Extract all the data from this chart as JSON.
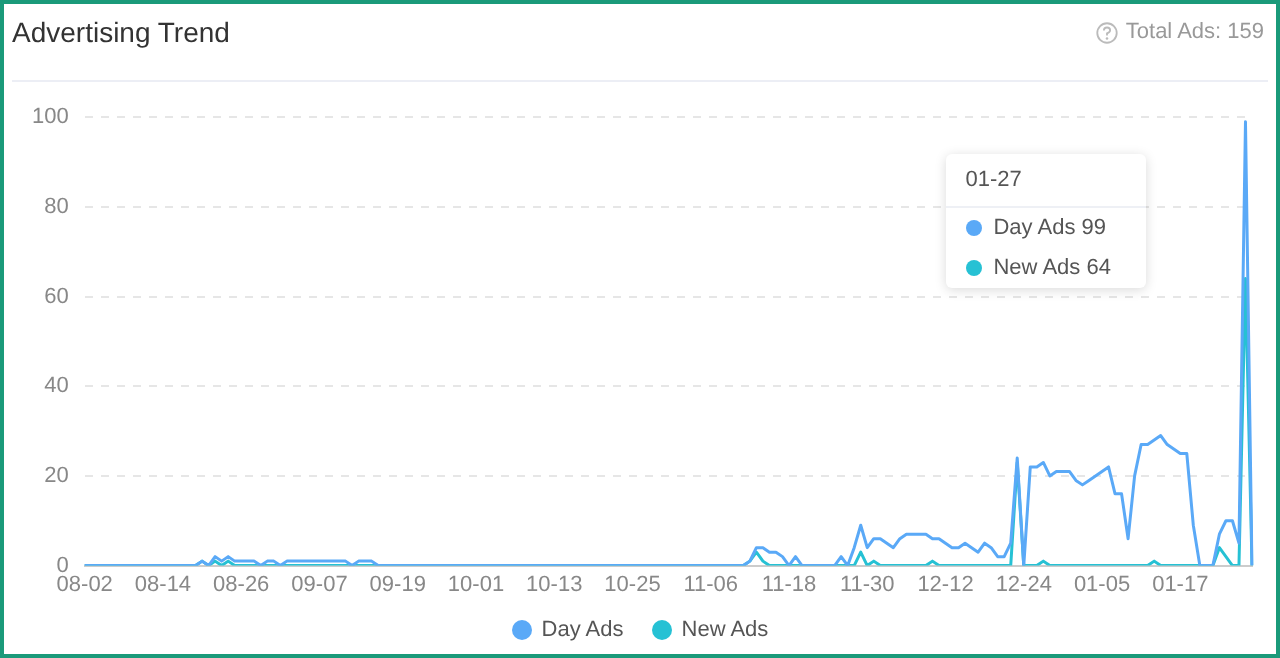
{
  "chart_data": {
    "type": "line",
    "title": "Advertising Trend",
    "annotations": [
      "Total Ads: 159",
      "01-27",
      "Day Ads 99",
      "New Ads 64"
    ],
    "categories": [
      "08-02",
      null,
      null,
      null,
      null,
      null,
      null,
      null,
      null,
      null,
      null,
      null,
      "08-14",
      null,
      null,
      null,
      null,
      null,
      null,
      null,
      null,
      null,
      null,
      null,
      "08-26",
      null,
      null,
      null,
      null,
      null,
      null,
      null,
      null,
      null,
      null,
      null,
      "09-07",
      null,
      null,
      null,
      null,
      null,
      null,
      null,
      null,
      null,
      null,
      null,
      "09-19",
      null,
      null,
      null,
      null,
      null,
      null,
      null,
      null,
      null,
      null,
      null,
      "10-01",
      null,
      null,
      null,
      null,
      null,
      null,
      null,
      null,
      null,
      null,
      null,
      "10-13",
      null,
      null,
      null,
      null,
      null,
      null,
      null,
      null,
      null,
      null,
      null,
      "10-25",
      null,
      null,
      null,
      null,
      null,
      null,
      null,
      null,
      null,
      null,
      null,
      "11-06",
      null,
      null,
      null,
      null,
      null,
      null,
      null,
      null,
      null,
      null,
      null,
      "11-18",
      null,
      null,
      null,
      null,
      null,
      null,
      null,
      null,
      null,
      null,
      null,
      "11-30",
      null,
      null,
      null,
      null,
      null,
      null,
      null,
      null,
      null,
      null,
      null,
      "12-12",
      null,
      null,
      null,
      null,
      null,
      null,
      null,
      null,
      null,
      null,
      null,
      "12-24",
      null,
      null,
      null,
      null,
      null,
      null,
      null,
      null,
      null,
      null,
      null,
      "01-05",
      null,
      null,
      null,
      null,
      null,
      null,
      null,
      null,
      null,
      null,
      null,
      "01-17",
      null,
      null,
      null,
      null,
      null,
      null,
      null,
      null,
      null,
      null,
      null
    ],
    "series": [
      {
        "name": "Day Ads",
        "color": "#5aa9f7",
        "values": [
          0,
          0,
          0,
          0,
          0,
          0,
          0,
          0,
          0,
          0,
          0,
          0,
          0,
          0,
          0,
          0,
          0,
          0,
          1,
          0,
          2,
          1,
          2,
          1,
          1,
          1,
          1,
          0,
          1,
          1,
          0,
          1,
          1,
          1,
          1,
          1,
          1,
          1,
          1,
          1,
          1,
          0,
          1,
          1,
          1,
          0,
          0,
          0,
          0,
          0,
          0,
          0,
          0,
          0,
          0,
          0,
          0,
          0,
          0,
          0,
          0,
          0,
          0,
          0,
          0,
          0,
          0,
          0,
          0,
          0,
          0,
          0,
          0,
          0,
          0,
          0,
          0,
          0,
          0,
          0,
          0,
          0,
          0,
          0,
          0,
          0,
          0,
          0,
          0,
          0,
          0,
          0,
          0,
          0,
          0,
          0,
          0,
          0,
          0,
          0,
          0,
          0,
          1,
          4,
          4,
          3,
          3,
          2,
          0,
          2,
          0,
          0,
          0,
          0,
          0,
          0,
          2,
          0,
          4,
          9,
          4,
          6,
          6,
          5,
          4,
          6,
          7,
          7,
          7,
          7,
          6,
          6,
          5,
          4,
          4,
          5,
          4,
          3,
          5,
          4,
          2,
          2,
          5,
          24,
          0,
          22,
          22,
          23,
          20,
          21,
          21,
          21,
          19,
          18,
          19,
          20,
          21,
          22,
          16,
          16,
          6,
          20,
          27,
          27,
          28,
          29,
          27,
          26,
          25,
          25,
          9,
          0,
          0,
          0,
          7,
          10,
          10,
          5,
          99,
          0
        ]
      },
      {
        "name": "New Ads",
        "color": "#26c1d4",
        "values": [
          0,
          0,
          0,
          0,
          0,
          0,
          0,
          0,
          0,
          0,
          0,
          0,
          0,
          0,
          0,
          0,
          0,
          0,
          1,
          0,
          1,
          0,
          1,
          0,
          0,
          0,
          0,
          0,
          0,
          0,
          0,
          0,
          0,
          0,
          0,
          0,
          0,
          0,
          0,
          0,
          0,
          0,
          0,
          0,
          0,
          0,
          0,
          0,
          0,
          0,
          0,
          0,
          0,
          0,
          0,
          0,
          0,
          0,
          0,
          0,
          0,
          0,
          0,
          0,
          0,
          0,
          0,
          0,
          0,
          0,
          0,
          0,
          0,
          0,
          0,
          0,
          0,
          0,
          0,
          0,
          0,
          0,
          0,
          0,
          0,
          0,
          0,
          0,
          0,
          0,
          0,
          0,
          0,
          0,
          0,
          0,
          0,
          0,
          0,
          0,
          0,
          0,
          1,
          3,
          1,
          0,
          0,
          0,
          0,
          0,
          0,
          0,
          0,
          0,
          0,
          0,
          0,
          0,
          0,
          3,
          0,
          1,
          0,
          0,
          0,
          0,
          0,
          0,
          0,
          0,
          1,
          0,
          0,
          0,
          0,
          0,
          0,
          0,
          0,
          0,
          0,
          0,
          0,
          23,
          0,
          0,
          0,
          1,
          0,
          0,
          0,
          0,
          0,
          0,
          0,
          0,
          0,
          0,
          0,
          0,
          0,
          0,
          0,
          0,
          1,
          0,
          0,
          0,
          0,
          0,
          0,
          0,
          0,
          0,
          4,
          2,
          0,
          0,
          64,
          0
        ]
      }
    ],
    "ylim": [
      0,
      100
    ],
    "yticks": [
      0,
      20,
      40,
      60,
      80,
      100
    ],
    "grid": "y",
    "legend": "bottom",
    "marker": "none",
    "line_style": "solid"
  }
}
